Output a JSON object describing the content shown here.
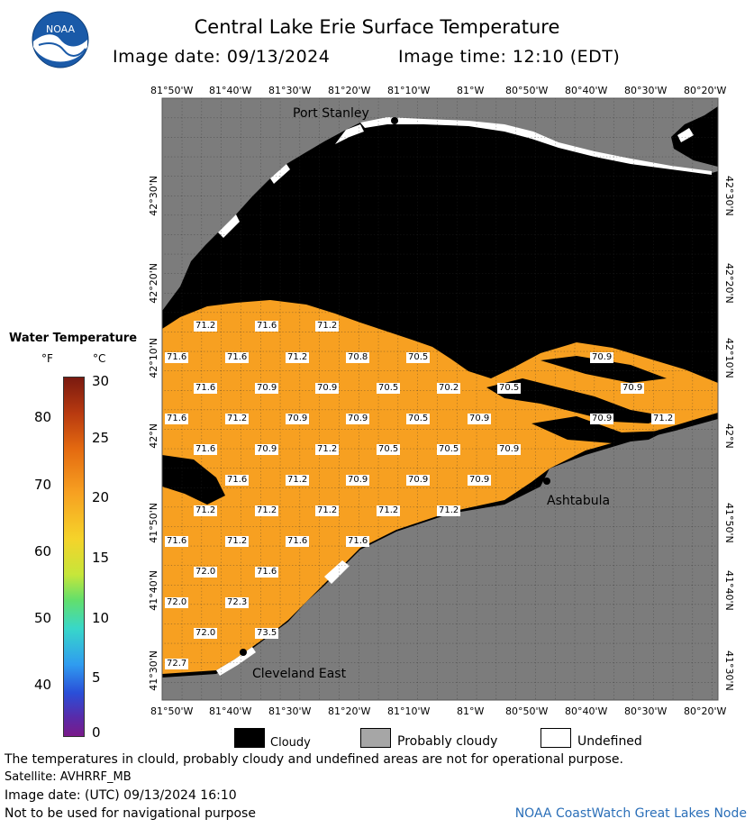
{
  "header": {
    "title": "Central Lake Erie Surface Temperature",
    "image_date": "Image date: 09/13/2024",
    "image_time": "Image time: 12:10 (EDT)"
  },
  "logo": {
    "text": "NOAA"
  },
  "axes": {
    "lon_ticks": [
      "81°50'W",
      "81°40'W",
      "81°30'W",
      "81°20'W",
      "81°10'W",
      "81°W",
      "80°50'W",
      "80°40'W",
      "80°30'W",
      "80°20'W"
    ],
    "lat_ticks": [
      "42°30'N",
      "42°20'N",
      "42°10'N",
      "42°N",
      "41°50'N",
      "41°40'N",
      "41°30'N"
    ]
  },
  "places": [
    {
      "name": "Port Stanley"
    },
    {
      "name": "Ashtabula"
    },
    {
      "name": "Cleveland East"
    }
  ],
  "temperatures": [
    "71.2",
    "71.6",
    "71.2",
    "71.6",
    "71.6",
    "71.2",
    "70.8",
    "70.5",
    "70.9",
    "71.6",
    "70.9",
    "70.9",
    "70.5",
    "70.2",
    "70.5",
    "70.9",
    "71.6",
    "71.2",
    "70.9",
    "70.9",
    "70.5",
    "70.9",
    "70.9",
    "71.2",
    "71.6",
    "70.9",
    "71.2",
    "70.5",
    "70.5",
    "70.9",
    "71.6",
    "71.2",
    "70.9",
    "70.9",
    "70.9",
    "71.2",
    "71.2",
    "71.2",
    "71.2",
    "71.2",
    "71.6",
    "71.2",
    "71.6",
    "71.6",
    "72.0",
    "71.6",
    "72.0",
    "72.3",
    "72.0",
    "73.5",
    "72.7"
  ],
  "legend": {
    "title": "Water Temperature",
    "unit_f": "°F",
    "unit_c": "°C",
    "f_labels": [
      "80",
      "70",
      "60",
      "50",
      "40"
    ],
    "c_labels": [
      "30",
      "25",
      "20",
      "15",
      "10",
      "5",
      "0"
    ],
    "keys": [
      {
        "label": "Cloudy",
        "color": "#000000"
      },
      {
        "label": "Probably cloudy",
        "color": "#a6a6a6"
      },
      {
        "label": "Undefined",
        "color": "#ffffff"
      }
    ]
  },
  "colors": {
    "land": "#7c7c7c",
    "water_warm": "#f7a021",
    "cloud": "#000000"
  },
  "footer": {
    "disclaimer": "The temperatures in clould, probably cloudy and undefined areas are not for operational purpose.",
    "satellite": "Satellite: AVHRRF_MB",
    "utc_date": "Image date: (UTC) 09/13/2024   16:10",
    "nav": "Not to be used for navigational purpose",
    "credit": "NOAA CoastWatch Great Lakes Node"
  }
}
